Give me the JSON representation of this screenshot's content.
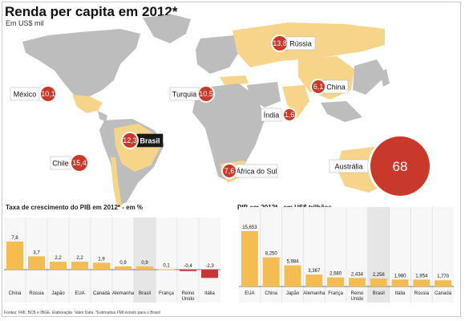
{
  "header": {
    "title": "Renda per capita em 2012*",
    "subtitle": "Em US$ mil"
  },
  "map": {
    "labels": [
      {
        "country": "Rússia",
        "value": "13,8",
        "size": 9,
        "highlight": false
      },
      {
        "country": "México",
        "value": "10,1",
        "size": 9,
        "highlight": false
      },
      {
        "country": "Turquia",
        "value": "10,5",
        "size": 9,
        "highlight": false
      },
      {
        "country": "China",
        "value": "6,1",
        "size": 8,
        "highlight": false
      },
      {
        "country": "Índia",
        "value": "1,6",
        "size": 7,
        "highlight": false
      },
      {
        "country": "Brasil",
        "value": "12,3",
        "size": 9,
        "highlight": true
      },
      {
        "country": "Chile",
        "value": "15,4",
        "size": 10,
        "highlight": false
      },
      {
        "country": "África do Sul",
        "value": "7,6",
        "size": 8,
        "highlight": false
      },
      {
        "country": "Austrália",
        "value": "68",
        "size": 37,
        "highlight": false
      }
    ]
  },
  "chart_data": [
    {
      "type": "bar",
      "title": "Taxa de crescimento do PIB em 2012* - em %",
      "categories": [
        "China",
        "Rússia",
        "Japão",
        "EUA",
        "Canadá",
        "Alemanha",
        "Brasil",
        "França",
        "Reino Unido",
        "Itália"
      ],
      "values": [
        7.8,
        3.7,
        2.2,
        2.2,
        1.9,
        0.9,
        0.9,
        0.1,
        -0.4,
        -2.3
      ],
      "value_labels": [
        "7,8",
        "3,7",
        "2,2",
        "2,2",
        "1,9",
        "0,9",
        "0,9",
        "0,1",
        "-0,4",
        "-2,3"
      ],
      "highlight_category": "Brasil",
      "ylim": [
        -2.3,
        7.8
      ]
    },
    {
      "type": "bar",
      "title": "PIB em 2012* - em US$ trilhões",
      "categories": [
        "EUA",
        "China",
        "Japão",
        "Alemanha",
        "França",
        "Reino Unido",
        "Brasil",
        "Itália",
        "Rússia",
        "Canadá"
      ],
      "values": [
        15.653,
        8.25,
        5.984,
        3.367,
        2.58,
        2.434,
        2.258,
        1.98,
        1.954,
        1.77
      ],
      "value_labels": [
        "15,653",
        "8,250",
        "5,984",
        "3,367",
        "2,580",
        "2,434",
        "2,258",
        "1,980",
        "1,954",
        "1,770"
      ],
      "highlight_category": "Brasil",
      "ylim": [
        0,
        15.653
      ]
    }
  ],
  "footer": {
    "source": "Fontes: FMI, BCB e IBGE. Elaboração: Valor Data. *Estimativa FMI exceto para o Brasil"
  },
  "colors": {
    "land": "#bdbdbd",
    "highlight_land": "#f6d48a",
    "bubble": "#c8392b",
    "bar": "#f3bd52",
    "negative_bar": "#cc3333",
    "highlight_column": "#e6e6e6"
  }
}
